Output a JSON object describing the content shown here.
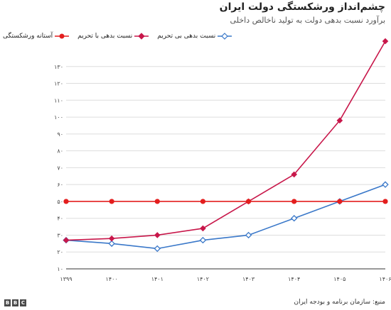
{
  "header": {
    "title": "چشم‌انداز ورشکستگی دولت ایران",
    "subtitle": "برآورد نسبت بدهی دولت به تولید ناخالص داخلی"
  },
  "footer": {
    "source": "منبع: سازمان برنامه و بودجه ایران",
    "logo_letters": [
      "B",
      "B",
      "C"
    ]
  },
  "legend": [
    {
      "label": "نسبت بدهی بی تحریم",
      "color": "#3a78c9",
      "marker": "open-diamond"
    },
    {
      "label": "نسبت بدهی با تحریم",
      "color": "#c8174a",
      "marker": "filled-diamond"
    },
    {
      "label": "آستانه ورشکستگی",
      "color": "#e31e1e",
      "marker": "filled-circle"
    }
  ],
  "chart_data": {
    "type": "line",
    "title": "چشم‌انداز ورشکستگی دولت ایران",
    "subtitle": "برآورد نسبت بدهی دولت به تولید ناخالص داخلی",
    "x": [
      "۱۳۹۹",
      "۱۴۰۰",
      "۱۴۰۱",
      "۱۴۰۲",
      "۱۴۰۳",
      "۱۴۰۴",
      "۱۴۰۵",
      "۱۴۰۶"
    ],
    "ylim": [
      10,
      140
    ],
    "yticks": [
      10,
      20,
      30,
      40,
      50,
      60,
      70,
      80,
      90,
      100,
      110,
      120,
      130
    ],
    "ytick_labels": [
      "۱۰",
      "۲۰",
      "۳۰",
      "۴۰",
      "۵۰",
      "۶۰",
      "۷۰",
      "۸۰",
      "۹۰",
      "۱۰۰",
      "۱۱۰",
      "۱۲۰",
      "۱۳۰"
    ],
    "grid": true,
    "legend_position": "top-left",
    "series": [
      {
        "name": "نسبت بدهی بی تحریم",
        "color": "#3a78c9",
        "marker": "open-diamond",
        "values": [
          27,
          25,
          22,
          27,
          30,
          40,
          50,
          60
        ]
      },
      {
        "name": "نسبت بدهی با تحریم",
        "color": "#c8174a",
        "marker": "filled-diamond",
        "values": [
          27,
          28,
          30,
          34,
          50,
          66,
          98,
          145
        ]
      },
      {
        "name": "آستانه ورشکستگی",
        "color": "#e31e1e",
        "marker": "filled-circle",
        "values": [
          50,
          50,
          50,
          50,
          50,
          50,
          50,
          50
        ]
      }
    ]
  }
}
